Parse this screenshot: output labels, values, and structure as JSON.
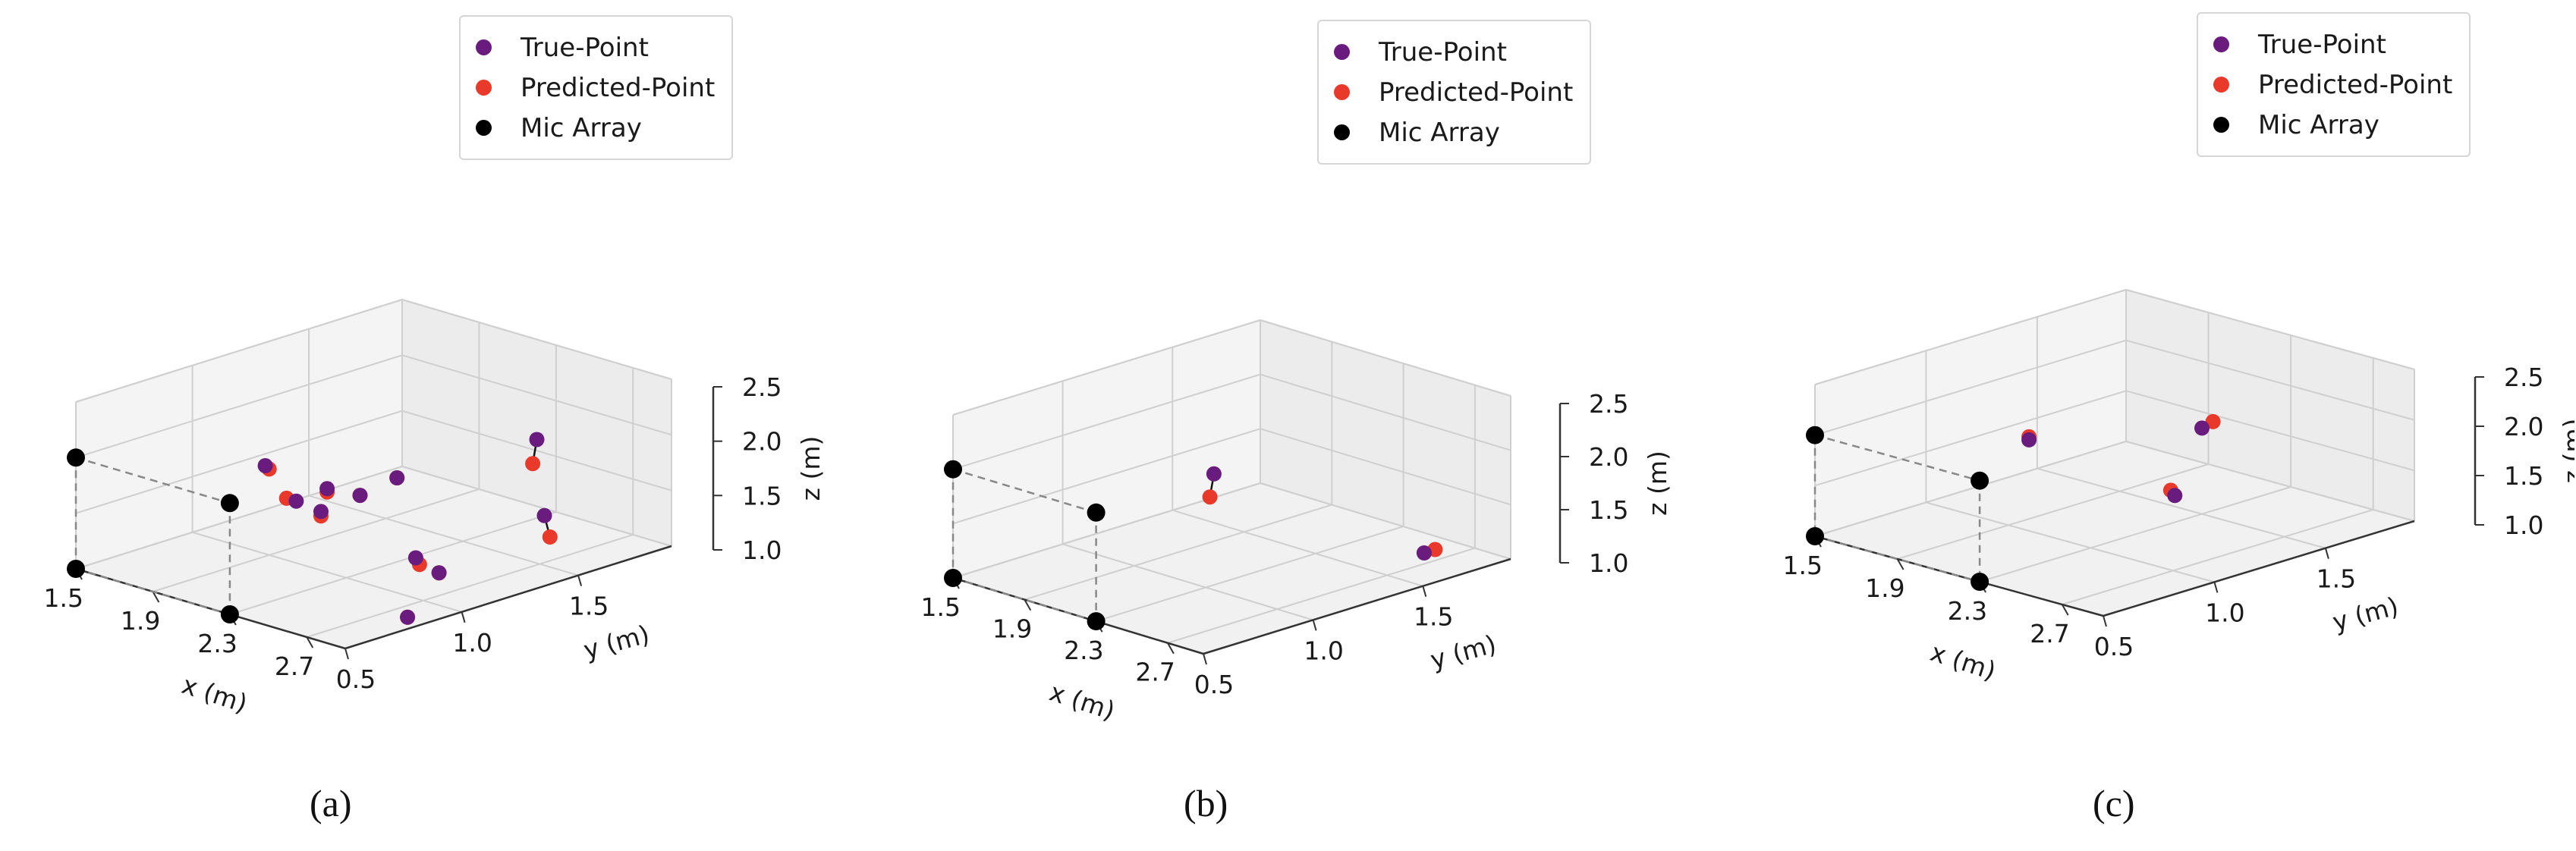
{
  "colors": {
    "true_point": "#6a1b7e",
    "predicted_point": "#e8392a",
    "mic_array": "#000000"
  },
  "chart_data": [
    {
      "type": "scatter",
      "caption": "(a)",
      "legend": [
        "True-Point",
        "Predicted-Point",
        "Mic Array"
      ],
      "legend_placement": "top",
      "xlabel": "x (m)",
      "ylabel": "y (m)",
      "zlabel": "z (m)",
      "xticks": [
        "1.5",
        "1.9",
        "2.3",
        "2.7"
      ],
      "yticks": [
        "0.5",
        "1.0",
        "1.5"
      ],
      "zticks": [
        "1.0",
        "1.5",
        "2.0",
        "2.5"
      ],
      "xlim": [
        1.5,
        2.9
      ],
      "ylim": [
        0.5,
        1.9
      ],
      "zlim": [
        1.0,
        2.5
      ],
      "grid": true,
      "mic_array": [
        [
          1.5,
          0.5,
          2.0
        ],
        [
          2.3,
          0.5,
          2.0
        ],
        [
          1.5,
          0.5,
          1.0
        ],
        [
          2.3,
          0.5,
          1.0
        ]
      ],
      "pairs": [
        {
          "true": [
            2.0,
            0.9,
            1.92
          ],
          "pred": [
            2.02,
            0.9,
            1.9
          ]
        },
        {
          "true": [
            2.2,
            1.0,
            1.75
          ],
          "pred": [
            2.2,
            1.0,
            1.72
          ]
        },
        {
          "true": [
            2.35,
            0.85,
            1.72
          ],
          "pred": [
            2.35,
            0.85,
            1.68
          ]
        },
        {
          "true": [
            2.1,
            0.95,
            1.62
          ],
          "pred": [
            2.05,
            0.95,
            1.62
          ]
        },
        {
          "true": [
            2.25,
            1.1,
            1.65
          ],
          "pred": [
            2.25,
            1.1,
            1.65
          ]
        },
        {
          "true": [
            2.2,
            1.3,
            1.65
          ],
          "pred": [
            2.2,
            1.3,
            1.65
          ]
        },
        {
          "true": [
            2.6,
            1.05,
            1.3
          ],
          "pred": [
            2.62,
            1.05,
            1.25
          ]
        },
        {
          "true": [
            2.6,
            1.15,
            1.1
          ],
          "pred": [
            2.6,
            1.15,
            1.1
          ]
        },
        {
          "true": [
            2.8,
            0.85,
            1.0
          ],
          "pred": [
            2.8,
            0.85,
            1.0
          ]
        },
        {
          "true": [
            2.2,
            1.9,
            1.6
          ],
          "pred": [
            2.3,
            1.8,
            1.5
          ]
        },
        {
          "true": [
            2.3,
            1.85,
            1.0
          ],
          "pred": [
            2.45,
            1.75,
            0.95
          ]
        }
      ]
    },
    {
      "type": "scatter",
      "caption": "(b)",
      "legend": [
        "True-Point",
        "Predicted-Point",
        "Mic Array"
      ],
      "legend_placement": "top",
      "xlabel": "x (m)",
      "ylabel": "y (m)",
      "zlabel": "z (m)",
      "xticks": [
        "1.5",
        "1.9",
        "2.3",
        "2.7"
      ],
      "yticks": [
        "0.5",
        "1.0",
        "1.5"
      ],
      "zticks": [
        "1.0",
        "1.5",
        "2.0",
        "2.5"
      ],
      "xlim": [
        1.5,
        2.9
      ],
      "ylim": [
        0.5,
        1.9
      ],
      "zlim": [
        1.0,
        2.5
      ],
      "grid": true,
      "mic_array": [
        [
          1.5,
          0.5,
          2.0
        ],
        [
          2.3,
          0.5,
          2.0
        ],
        [
          1.5,
          0.5,
          1.0
        ],
        [
          2.3,
          0.5,
          1.0
        ]
      ],
      "pairs": [
        {
          "true": [
            2.1,
            1.2,
            1.82
          ],
          "pred": [
            2.2,
            1.1,
            1.72
          ]
        },
        {
          "true": [
            2.6,
            1.75,
            1.0
          ],
          "pred": [
            2.6,
            1.8,
            1.0
          ]
        }
      ]
    },
    {
      "type": "scatter",
      "caption": "(c)",
      "legend": [
        "True-Point",
        "Predicted-Point",
        "Mic Array"
      ],
      "legend_placement": "top",
      "xlabel": "x (m)",
      "ylabel": "y (m)",
      "zlabel": "z (m)",
      "xticks": [
        "1.5",
        "1.9",
        "2.3",
        "2.7"
      ],
      "yticks": [
        "0.5",
        "1.0",
        "1.5"
      ],
      "zticks": [
        "1.0",
        "1.5",
        "2.0",
        "2.5"
      ],
      "xlim": [
        1.5,
        2.9
      ],
      "ylim": [
        0.5,
        1.9
      ],
      "zlim": [
        1.0,
        2.5
      ],
      "grid": true,
      "mic_array": [
        [
          1.5,
          0.5,
          2.0
        ],
        [
          2.3,
          0.5,
          2.0
        ],
        [
          1.5,
          0.5,
          1.0
        ],
        [
          2.3,
          0.5,
          1.0
        ]
      ],
      "pairs": [
        {
          "true": [
            2.0,
            1.0,
            1.9
          ],
          "pred": [
            2.0,
            1.0,
            1.93
          ]
        },
        {
          "true": [
            2.6,
            1.1,
            1.62
          ],
          "pred": [
            2.58,
            1.1,
            1.66
          ]
        },
        {
          "true": [
            2.3,
            1.5,
            1.85
          ],
          "pred": [
            2.3,
            1.55,
            1.88
          ]
        }
      ]
    }
  ]
}
